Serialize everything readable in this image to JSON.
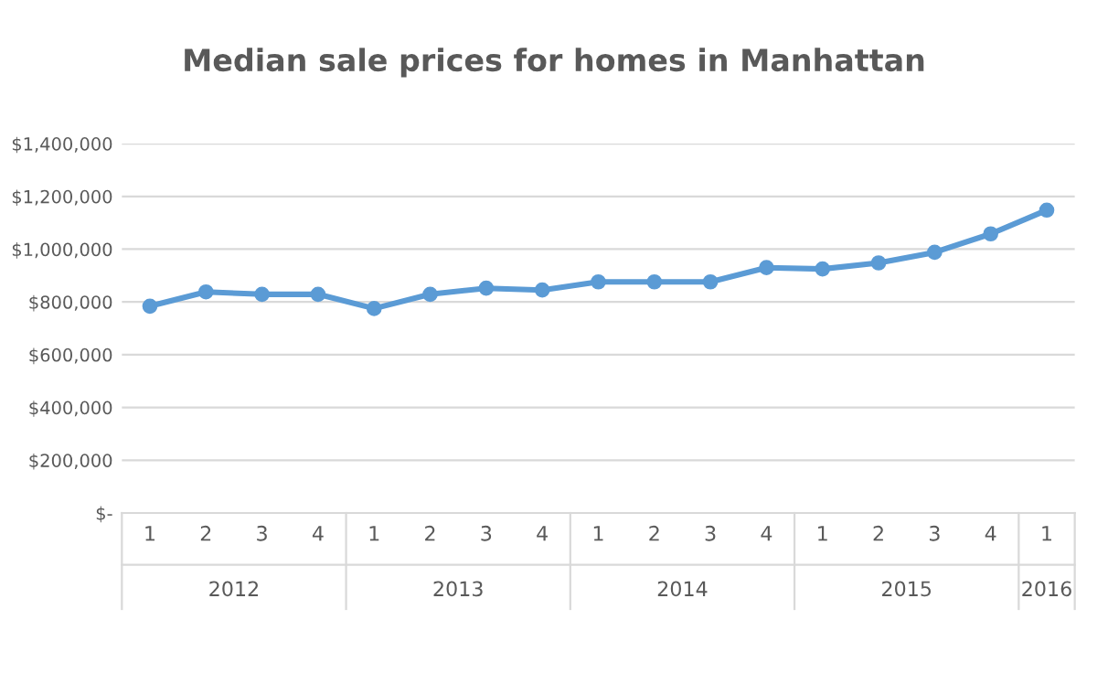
{
  "chart_data": {
    "type": "line",
    "title": "Median sale prices for homes in Manhattan",
    "categories": [
      "1",
      "2",
      "3",
      "4",
      "1",
      "2",
      "3",
      "4",
      "1",
      "2",
      "3",
      "4",
      "1",
      "2",
      "3",
      "4",
      "1"
    ],
    "series": [
      {
        "color": "#5b9bd5",
        "values": [
          784000,
          838000,
          829000,
          829000,
          775000,
          829000,
          852000,
          845000,
          876000,
          876000,
          876000,
          930000,
          925000,
          948000,
          988000,
          1058000,
          1148000
        ]
      }
    ],
    "annotations": [
      "2012",
      "2013",
      "2014",
      "2015",
      "2016"
    ],
    "ylim": [
      0,
      1400000
    ],
    "yticks": [
      {
        "value": 0,
        "label": "$-"
      },
      {
        "value": 200000,
        "label": "$200,000"
      },
      {
        "value": 400000,
        "label": "$400,000"
      },
      {
        "value": 600000,
        "label": "$600,000"
      },
      {
        "value": 800000,
        "label": "$800,000"
      },
      {
        "value": 1000000,
        "label": "$1,000,000"
      },
      {
        "value": 1200000,
        "label": "$1,200,000"
      },
      {
        "value": 1400000,
        "label": "$1,400,000"
      }
    ],
    "grid": "y",
    "marker": "circle",
    "line_style": "solid",
    "legend": false
  }
}
